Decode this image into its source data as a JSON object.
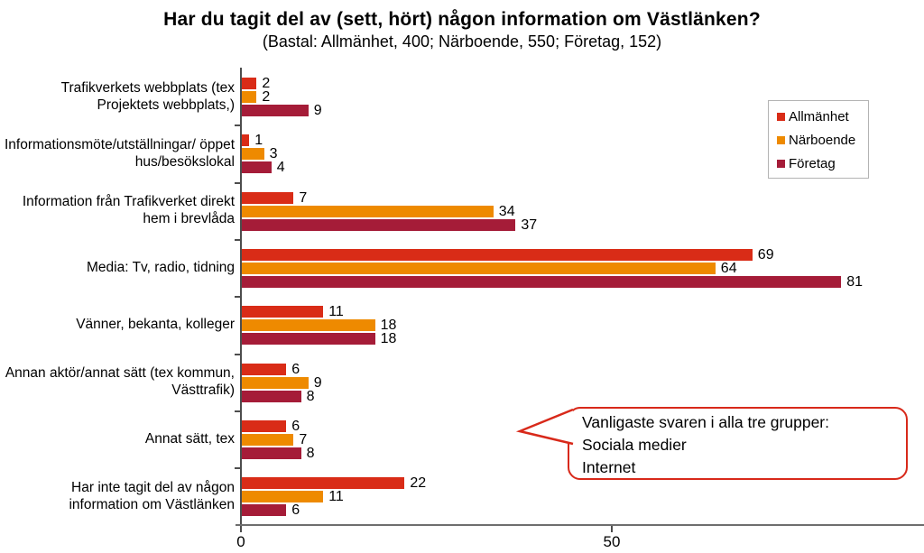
{
  "title": "Har du tagit del av (sett, hört) någon information om Västlänken?",
  "subtitle": "(Bastal: Allmänhet, 400; Närboende, 550; Företag, 152)",
  "chart_data": {
    "type": "bar",
    "orientation": "horizontal",
    "title": "Har du tagit del av (sett, hört) någon information om Västlänken?",
    "subtitle": "(Bastal: Allmänhet, 400; Närboende, 550; Företag, 152)",
    "categories": [
      "Trafikverkets webbplats (tex Projektets webbplats,)",
      "Informationsmöte/utställningar/ öppet hus/besökslokal",
      "Information från Trafikverket direkt hem i brevlåda",
      "Media: Tv, radio, tidning",
      "Vänner, bekanta, kolleger",
      "Annan aktör/annat sätt (tex kommun, Västtrafik)",
      "Annat sätt, tex",
      "Har inte tagit del av någon information om Västlänken"
    ],
    "series": [
      {
        "name": "Allmänhet",
        "color": "#d92c17",
        "values": [
          2,
          1,
          7,
          69,
          11,
          6,
          6,
          22
        ]
      },
      {
        "name": "Närboende",
        "color": "#ee8a00",
        "values": [
          2,
          3,
          34,
          64,
          18,
          9,
          7,
          11
        ]
      },
      {
        "name": "Företag",
        "color": "#a51c38",
        "values": [
          9,
          4,
          37,
          81,
          18,
          8,
          8,
          6
        ]
      }
    ],
    "xlim": [
      0,
      92
    ],
    "x_ticks": [
      0,
      50
    ],
    "x_tick_labels": [
      "0",
      "50"
    ],
    "grid": false,
    "legend_position": "top-right",
    "value_labels": true
  },
  "callout": {
    "line1": "Vanligaste svaren i alla tre grupper:",
    "line2": "Sociala medier",
    "line3": "Internet",
    "border_color": "#d8291a"
  }
}
